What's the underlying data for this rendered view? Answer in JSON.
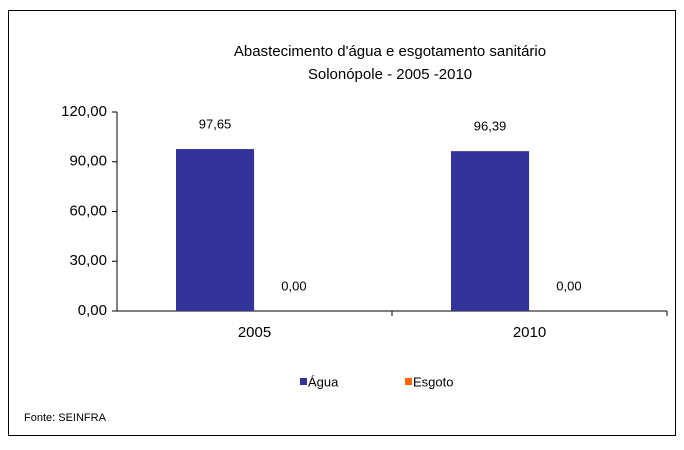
{
  "chart_data": {
    "type": "bar",
    "title": "Abastecimento d'água e esgotamento sanitário",
    "subtitle": "Solonópole - 2005 -2010",
    "categories": [
      "2005",
      "2010"
    ],
    "series": [
      {
        "name": "Água",
        "color": "#333399",
        "values": [
          97.65,
          96.39
        ],
        "value_labels": [
          "97,65",
          "96,39"
        ]
      },
      {
        "name": "Esgoto",
        "color": "#ff6600",
        "values": [
          0,
          0
        ],
        "value_labels": [
          "0,00",
          "0,00"
        ]
      }
    ],
    "ylim": [
      0,
      120
    ],
    "yticks": [
      {
        "value": 0,
        "label": "0,00"
      },
      {
        "value": 30,
        "label": "30,00"
      },
      {
        "value": 60,
        "label": "60,00"
      },
      {
        "value": 90,
        "label": "90,00"
      },
      {
        "value": 120,
        "label": "120,00"
      }
    ],
    "legend": "bottom",
    "source": "Fonte: SEINFRA"
  }
}
